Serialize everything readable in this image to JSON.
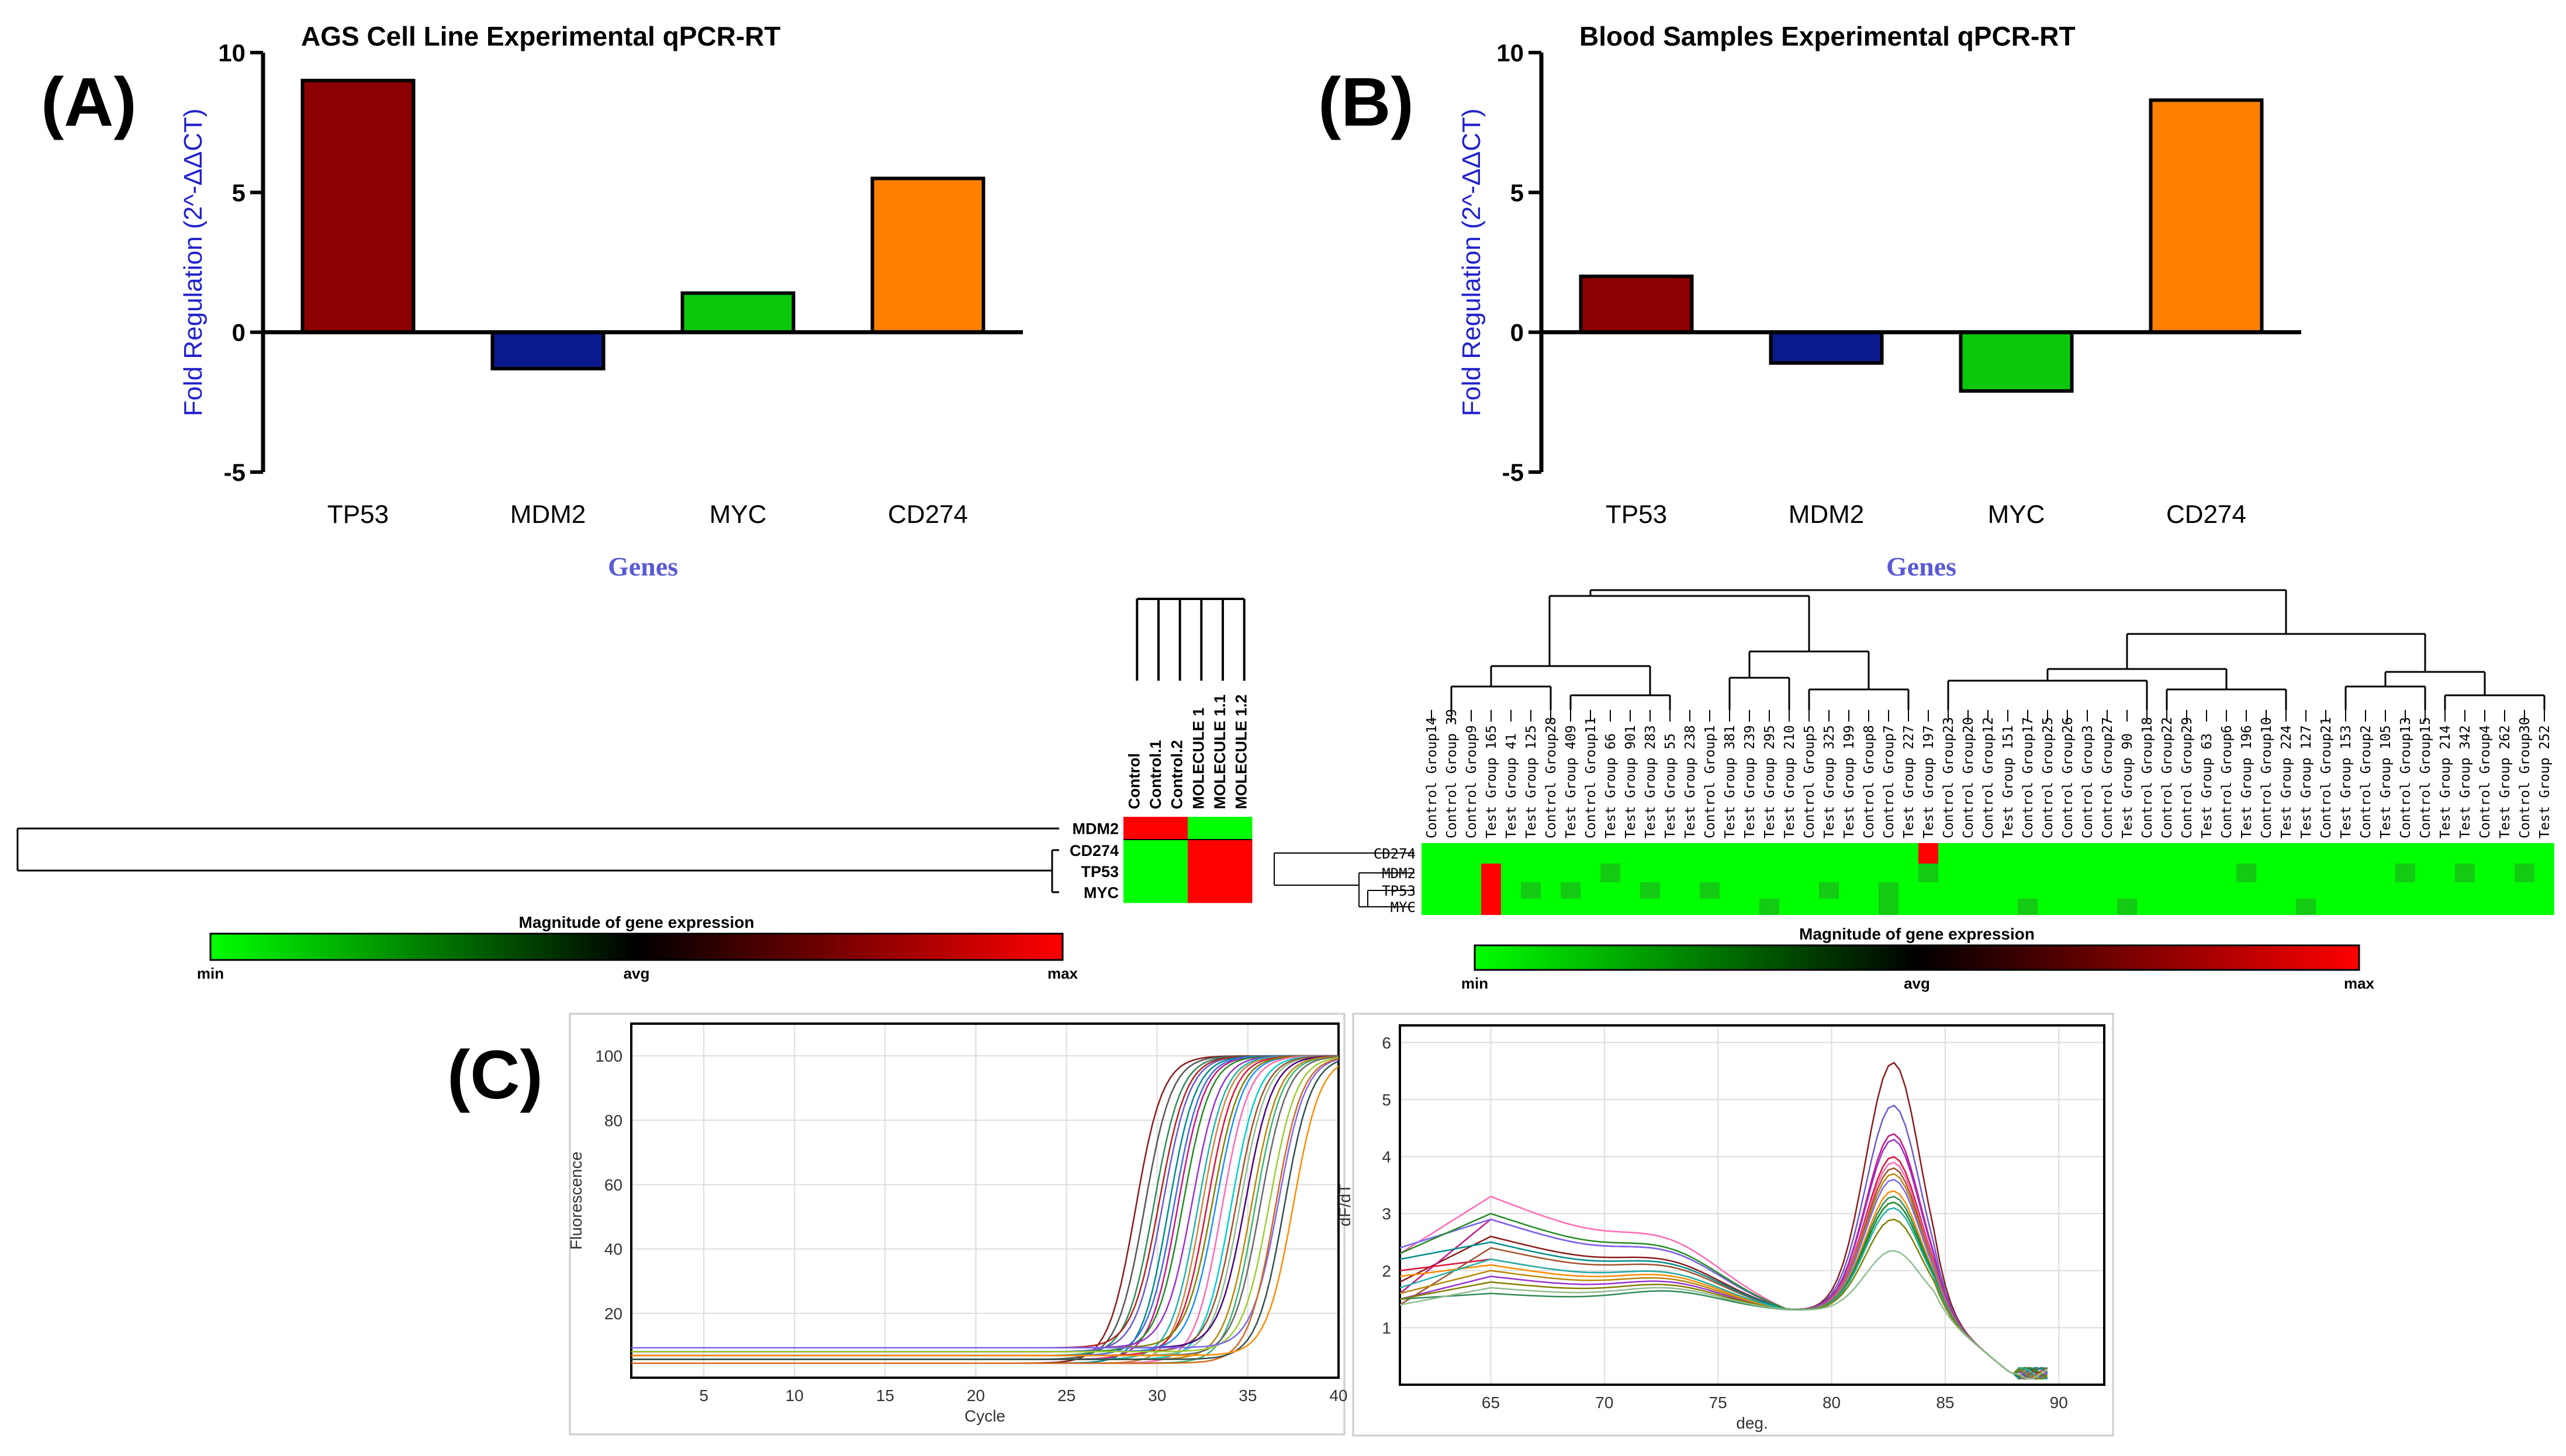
{
  "panels": {
    "a": {
      "label": "(A)"
    },
    "b": {
      "label": "(B)"
    },
    "c": {
      "label": "(C)"
    }
  },
  "colors": {
    "TP53": "#8B0000",
    "MDM2": "#0A1A8C",
    "MYC": "#0CC80C",
    "CD274": "#FF8000",
    "axis_label": "#2222CC",
    "genes_label": "#5A5AD6",
    "heat_min": "#00FF00",
    "heat_avg": "#000000",
    "heat_max": "#FF0000"
  },
  "chart_data": [
    {
      "id": "bar-a",
      "type": "bar",
      "title": "AGS Cell Line Experimental qPCR-RT",
      "categories": [
        "TP53",
        "MDM2",
        "MYC",
        "CD274"
      ],
      "values": [
        9.0,
        -1.3,
        1.4,
        5.5
      ],
      "xlabel": "Genes",
      "ylabel": "Fold Regulation (2^-ΔΔCT)",
      "ylim": [
        -5,
        10
      ],
      "yticks": [
        "-5",
        "0",
        "5",
        "10"
      ]
    },
    {
      "id": "bar-b",
      "type": "bar",
      "title": "Blood Samples Experimental qPCR-RT",
      "categories": [
        "TP53",
        "MDM2",
        "MYC",
        "CD274"
      ],
      "values": [
        2.0,
        -1.1,
        -2.1,
        8.3
      ],
      "xlabel": "Genes",
      "ylabel": "Fold Regulation (2^-ΔΔCT)",
      "ylim": [
        -5,
        10
      ],
      "yticks": [
        "-5",
        "0",
        "5",
        "10"
      ]
    },
    {
      "id": "heatmap-left",
      "type": "heatmap",
      "columns": [
        "Control",
        "Control.1",
        "Control.2",
        "MOLECULE 1",
        "MOLECULE 1.1",
        "MOLECULE 1.2"
      ],
      "rows": [
        "MDM2",
        "CD274",
        "TP53",
        "MYC"
      ],
      "values": [
        [
          1,
          1,
          1,
          -1,
          -1,
          -1
        ],
        [
          -1,
          -1,
          -1,
          1,
          1,
          1
        ],
        [
          -1,
          -1,
          -1,
          1,
          1,
          1
        ],
        [
          -1,
          -1,
          -1,
          1,
          1,
          1
        ]
      ],
      "legend_title": "Magnitude of gene expression",
      "legend_labels": [
        "min",
        "avg",
        "max"
      ]
    },
    {
      "id": "heatmap-right",
      "type": "heatmap",
      "columns": [
        "Control Group14",
        "Control Group 39",
        "Control Group9",
        "Test Group 165",
        "Test Group 41",
        "Test Group 125",
        "Control Group28",
        "Test Group 409",
        "Control Group11",
        "Test Group 66",
        "Test Group 901",
        "Test Group 283",
        "Test Group 55",
        "Test Group 238",
        "Control Group1",
        "Test Group 381",
        "Test Group 239",
        "Test Group 295",
        "Test Group 210",
        "Control Group5",
        "Test Group 325",
        "Test Group 199",
        "Control Group8",
        "Control Group7",
        "Test Group 227",
        "Test Group 197",
        "Control Group23",
        "Control Group20",
        "Control Group12",
        "Test Group 151",
        "Control Group17",
        "Control Group25",
        "Control Group26",
        "Control Group3",
        "Control Group27",
        "Test Group 90",
        "Control Group18",
        "Control Group22",
        "Control Group29",
        "Test Group 63",
        "Control Group6",
        "Test Group 196",
        "Control Group10",
        "Test Group 224",
        "Test Group 127",
        "Control Group21",
        "Test Group 153",
        "Control Group2",
        "Test Group 105",
        "Control Group13",
        "Control Group15",
        "Test Group 214",
        "Test Group 342",
        "Control Group4",
        "Test Group 262",
        "Control Group30",
        "Test Group 252"
      ],
      "rows": [
        "CD274",
        "MDM2",
        "TP53",
        "MYC"
      ],
      "values": [
        [
          0,
          0,
          0,
          0,
          0,
          0,
          0,
          0,
          0,
          0,
          0,
          0,
          0,
          0,
          0,
          0,
          0,
          0,
          0,
          0,
          0,
          0,
          0,
          0,
          0,
          1,
          0,
          0,
          0,
          0,
          0,
          0,
          0,
          0,
          0,
          0,
          0,
          0,
          0,
          0,
          0,
          0,
          0,
          0,
          0,
          0,
          0,
          0,
          0,
          0,
          0,
          0,
          0,
          0,
          0,
          0,
          0
        ],
        [
          0,
          0,
          0,
          1,
          0,
          0,
          0,
          0,
          0,
          0,
          0,
          0,
          0,
          0,
          0,
          0,
          0,
          0,
          0,
          0,
          0,
          0,
          0,
          0,
          0,
          0,
          0,
          0,
          0,
          0,
          0,
          0,
          0,
          0,
          0,
          0,
          0,
          0,
          0,
          0,
          0,
          0,
          0,
          0,
          0,
          0,
          0,
          0,
          0,
          0,
          0,
          0,
          0,
          0,
          0,
          0,
          0
        ],
        [
          0,
          0,
          0,
          1,
          0,
          0,
          0,
          0,
          0,
          0,
          0,
          0,
          0,
          0,
          0,
          0,
          0,
          0,
          0,
          0,
          0,
          0,
          0,
          0,
          0,
          0,
          0,
          0,
          0,
          0,
          0,
          0,
          0,
          0,
          0,
          0,
          0,
          0,
          0,
          0,
          0,
          0,
          0,
          0,
          0,
          0,
          0,
          0,
          0,
          0,
          0,
          0,
          0,
          0,
          0,
          0,
          0
        ],
        [
          0,
          0,
          0,
          1,
          0,
          0,
          0,
          0,
          0,
          0,
          0,
          0,
          0,
          0,
          0,
          0,
          0,
          0,
          0,
          0,
          0,
          0,
          0,
          0,
          0,
          0,
          0,
          0,
          0,
          0,
          0,
          0,
          0,
          0,
          0,
          0,
          0,
          0,
          0,
          0,
          0,
          0,
          0,
          0,
          0,
          0,
          0,
          0,
          0,
          0,
          0,
          0,
          0,
          0,
          0,
          0,
          0
        ]
      ],
      "legend_title": "Magnitude of gene expression",
      "legend_labels": [
        "min",
        "avg",
        "max"
      ]
    },
    {
      "id": "amplification",
      "type": "line",
      "xlabel": "Cycle",
      "ylabel": "Fluorescence",
      "xlim": [
        1,
        40
      ],
      "ylim": [
        0,
        110
      ],
      "xticks": [
        "5",
        "10",
        "15",
        "20",
        "25",
        "30",
        "35",
        "40"
      ],
      "yticks": [
        "20",
        "40",
        "60",
        "80",
        "100"
      ],
      "series_count": 28
    },
    {
      "id": "melt",
      "type": "line",
      "xlabel": "deg.",
      "ylabel": "dF/dT",
      "xlim": [
        61,
        92
      ],
      "ylim": [
        0,
        6.3
      ],
      "xticks": [
        "65",
        "70",
        "75",
        "80",
        "85",
        "90"
      ],
      "yticks": [
        "1",
        "2",
        "3",
        "4",
        "5",
        "6"
      ],
      "series_count": 16
    }
  ]
}
